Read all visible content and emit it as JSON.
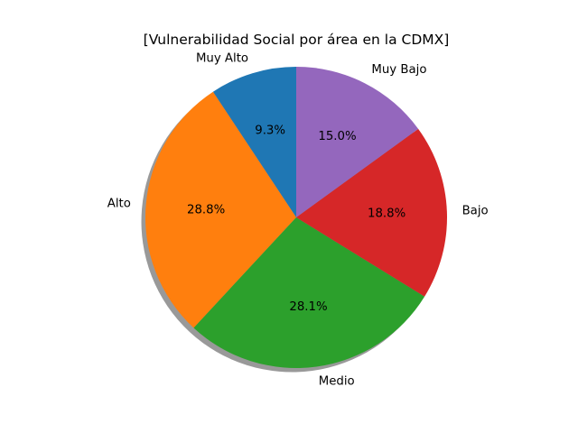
{
  "chart_data": {
    "type": "pie",
    "title": "[Vulnerabilidad Social por área en la CDMX]",
    "categories": [
      "Muy Alto",
      "Alto",
      "Medio",
      "Bajo",
      "Muy Bajo"
    ],
    "values": [
      9.3,
      28.8,
      28.1,
      18.8,
      15.0
    ],
    "percent_labels": [
      "9.3%",
      "28.8%",
      "28.1%",
      "18.8%",
      "15.0%"
    ],
    "colors": [
      "#1f77b4",
      "#ff7f0e",
      "#2ca02c",
      "#d62728",
      "#9467bd"
    ],
    "start_angle_deg": 90,
    "direction": "counterclockwise",
    "shadow": true,
    "legend": "none"
  }
}
